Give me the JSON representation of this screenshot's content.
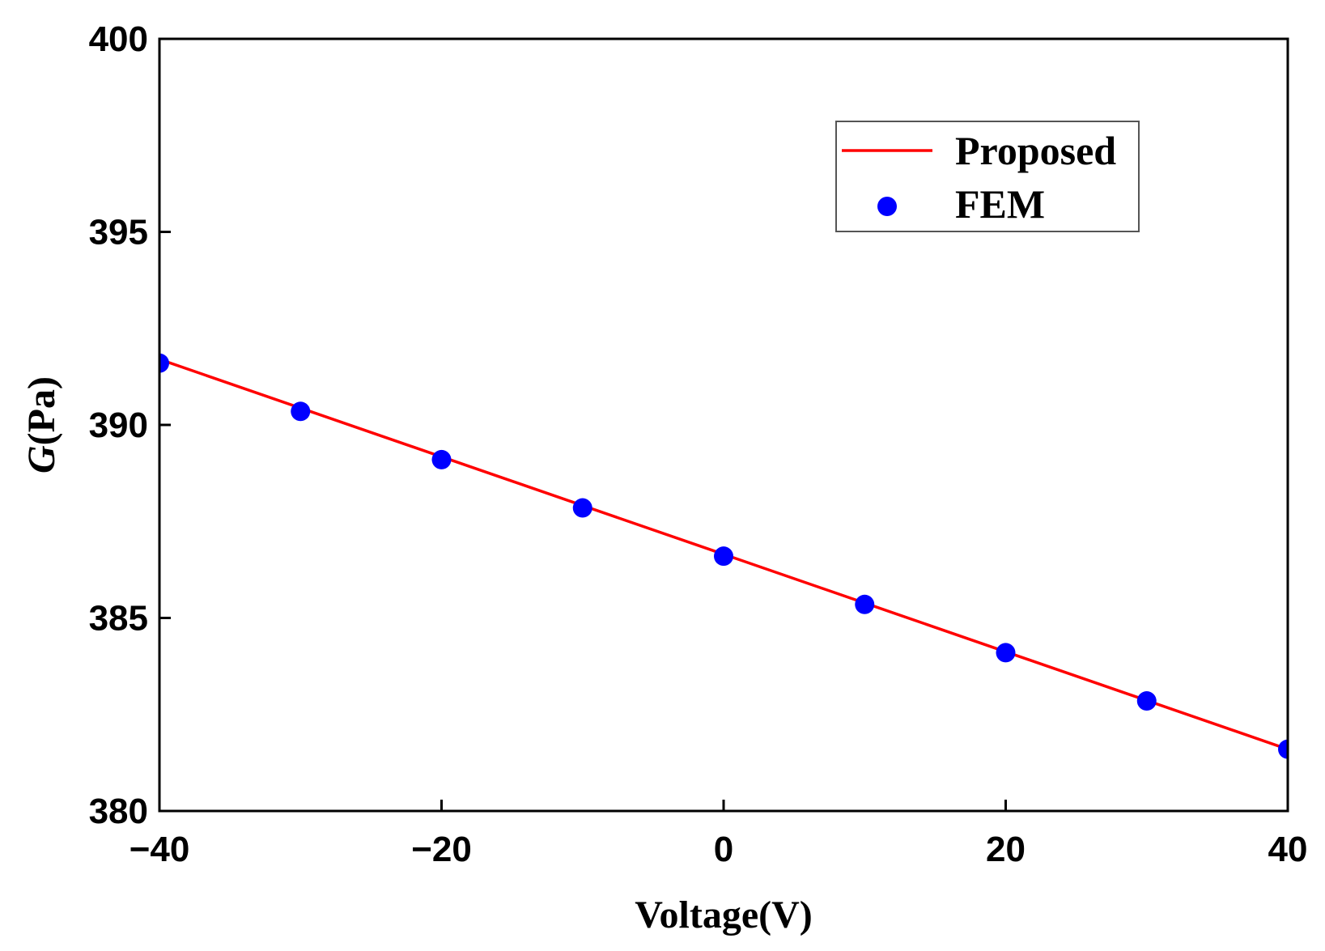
{
  "chart_data": {
    "type": "line",
    "title": "",
    "xlabel": "Voltage(V)",
    "ylabel_italic": "G",
    "ylabel_rest": "(Pa)",
    "xlim": [
      -40,
      40
    ],
    "ylim": [
      380,
      400
    ],
    "xticks": [
      -40,
      -20,
      0,
      20,
      40
    ],
    "xtick_labels": [
      "−40",
      "−20",
      "0",
      "20",
      "40"
    ],
    "yticks": [
      380,
      385,
      390,
      395,
      400
    ],
    "ytick_labels": [
      "380",
      "385",
      "390",
      "395",
      "400"
    ],
    "legend_position": "top-right",
    "series": [
      {
        "name": "Proposed",
        "kind": "line",
        "color": "#ff0000",
        "x": [
          -40,
          40
        ],
        "y": [
          391.7,
          381.6
        ]
      },
      {
        "name": "FEM",
        "kind": "scatter",
        "color": "#0000ff",
        "x": [
          -40,
          -30,
          -20,
          -10,
          0,
          10,
          20,
          30,
          40
        ],
        "y": [
          391.6,
          390.35,
          389.1,
          387.85,
          386.6,
          385.35,
          384.1,
          382.85,
          381.6
        ]
      }
    ]
  }
}
